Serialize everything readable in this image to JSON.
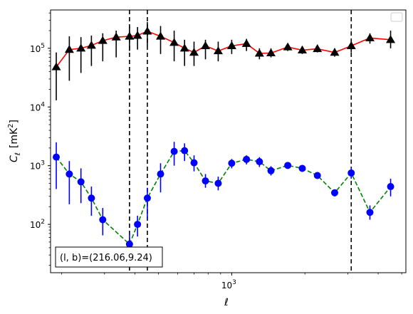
{
  "chart_data": {
    "type": "scatter",
    "xscale": "log",
    "yscale": "log",
    "xlim": [
      180,
      5200
    ],
    "ylim": [
      15,
      450000
    ],
    "xlabel": "ℓ",
    "ylabel_main": "C",
    "ylabel_sub": "ℓ",
    "ylabel_unit": "[mK",
    "ylabel_unit_sup": "2",
    "ylabel_unit_close": "]",
    "x_tick_base": "10",
    "x_tick_exp": "3",
    "y_ticks": [
      {
        "value": 100,
        "base": "10",
        "exp": "2"
      },
      {
        "value": 1000,
        "base": "10",
        "exp": "3"
      },
      {
        "value": 10000,
        "base": "10",
        "exp": "4"
      },
      {
        "value": 100000,
        "base": "10",
        "exp": "5"
      }
    ],
    "annotation": "(l, b)=(216.06,9.24)",
    "vlines": [
      380,
      450,
      3100
    ],
    "legend": "top-right",
    "series": [
      {
        "marker": "triangle",
        "color": "#000000",
        "line_color": "#ff0000",
        "line_style": "solid",
        "points": [
          {
            "x": 190,
            "y": 48000,
            "lo": 13000,
            "hi": 85000
          },
          {
            "x": 215,
            "y": 95000,
            "lo": 28000,
            "hi": 160000
          },
          {
            "x": 240,
            "y": 100000,
            "lo": 38000,
            "hi": 155000
          },
          {
            "x": 265,
            "y": 112000,
            "lo": 50000,
            "hi": 165000
          },
          {
            "x": 295,
            "y": 135000,
            "lo": 60000,
            "hi": 180000
          },
          {
            "x": 335,
            "y": 155000,
            "lo": 70000,
            "hi": 200000
          },
          {
            "x": 380,
            "y": 160000,
            "lo": 90000,
            "hi": 240000
          },
          {
            "x": 410,
            "y": 165000,
            "lo": 95000,
            "hi": 230000
          },
          {
            "x": 450,
            "y": 195000,
            "lo": 110000,
            "hi": 280000
          },
          {
            "x": 510,
            "y": 160000,
            "lo": 80000,
            "hi": 240000
          },
          {
            "x": 580,
            "y": 125000,
            "lo": 60000,
            "hi": 200000
          },
          {
            "x": 640,
            "y": 100000,
            "lo": 50000,
            "hi": 140000
          },
          {
            "x": 700,
            "y": 85000,
            "lo": 50000,
            "hi": 130000
          },
          {
            "x": 780,
            "y": 110000,
            "lo": 65000,
            "hi": 140000
          },
          {
            "x": 880,
            "y": 90000,
            "lo": 60000,
            "hi": 130000
          },
          {
            "x": 1000,
            "y": 110000,
            "lo": 80000,
            "hi": 140000
          },
          {
            "x": 1150,
            "y": 120000,
            "lo": 90000,
            "hi": 145000
          },
          {
            "x": 1300,
            "y": 82000,
            "lo": 65000,
            "hi": 100000
          },
          {
            "x": 1450,
            "y": 83000,
            "lo": 70000,
            "hi": 100000
          },
          {
            "x": 1700,
            "y": 105000,
            "lo": 90000,
            "hi": 120000
          },
          {
            "x": 1950,
            "y": 93000,
            "lo": 80000,
            "hi": 108000
          },
          {
            "x": 2250,
            "y": 98000,
            "lo": 85000,
            "hi": 112000
          },
          {
            "x": 2650,
            "y": 85000,
            "lo": 72000,
            "hi": 100000
          },
          {
            "x": 3100,
            "y": 110000,
            "lo": 85000,
            "hi": 145000
          },
          {
            "x": 3700,
            "y": 150000,
            "lo": 120000,
            "hi": 180000
          },
          {
            "x": 4500,
            "y": 140000,
            "lo": 100000,
            "hi": 200000
          }
        ]
      },
      {
        "marker": "circle",
        "color": "#0000ff",
        "line_color": "#008000",
        "line_style": "dashed",
        "points": [
          {
            "x": 190,
            "y": 1400,
            "lo": 400,
            "hi": 2500
          },
          {
            "x": 215,
            "y": 720,
            "lo": 220,
            "hi": 1200
          },
          {
            "x": 240,
            "y": 530,
            "lo": 230,
            "hi": 900
          },
          {
            "x": 265,
            "y": 280,
            "lo": 140,
            "hi": 440
          },
          {
            "x": 295,
            "y": 120,
            "lo": 65,
            "hi": 190
          },
          {
            "x": 380,
            "y": 46,
            "lo": 22,
            "hi": 70
          },
          {
            "x": 410,
            "y": 100,
            "lo": 62,
            "hi": 140
          },
          {
            "x": 450,
            "y": 280,
            "lo": 125,
            "hi": 420
          },
          {
            "x": 510,
            "y": 720,
            "lo": 350,
            "hi": 1100
          },
          {
            "x": 580,
            "y": 1750,
            "lo": 1000,
            "hi": 2550
          },
          {
            "x": 640,
            "y": 1800,
            "lo": 1200,
            "hi": 2400
          },
          {
            "x": 700,
            "y": 1120,
            "lo": 800,
            "hi": 1500
          },
          {
            "x": 780,
            "y": 550,
            "lo": 420,
            "hi": 720
          },
          {
            "x": 880,
            "y": 500,
            "lo": 380,
            "hi": 650
          },
          {
            "x": 1000,
            "y": 1100,
            "lo": 900,
            "hi": 1300
          },
          {
            "x": 1150,
            "y": 1280,
            "lo": 1050,
            "hi": 1500
          },
          {
            "x": 1300,
            "y": 1170,
            "lo": 950,
            "hi": 1400
          },
          {
            "x": 1450,
            "y": 820,
            "lo": 680,
            "hi": 980
          },
          {
            "x": 1700,
            "y": 1010,
            "lo": 900,
            "hi": 1120
          },
          {
            "x": 1950,
            "y": 900,
            "lo": 800,
            "hi": 1000
          },
          {
            "x": 2250,
            "y": 680,
            "lo": 600,
            "hi": 760
          },
          {
            "x": 2650,
            "y": 345,
            "lo": 300,
            "hi": 390
          },
          {
            "x": 3100,
            "y": 750,
            "lo": 600,
            "hi": 920
          },
          {
            "x": 3700,
            "y": 160,
            "lo": 120,
            "hi": 210
          },
          {
            "x": 4500,
            "y": 440,
            "lo": 300,
            "hi": 600
          }
        ]
      }
    ]
  }
}
